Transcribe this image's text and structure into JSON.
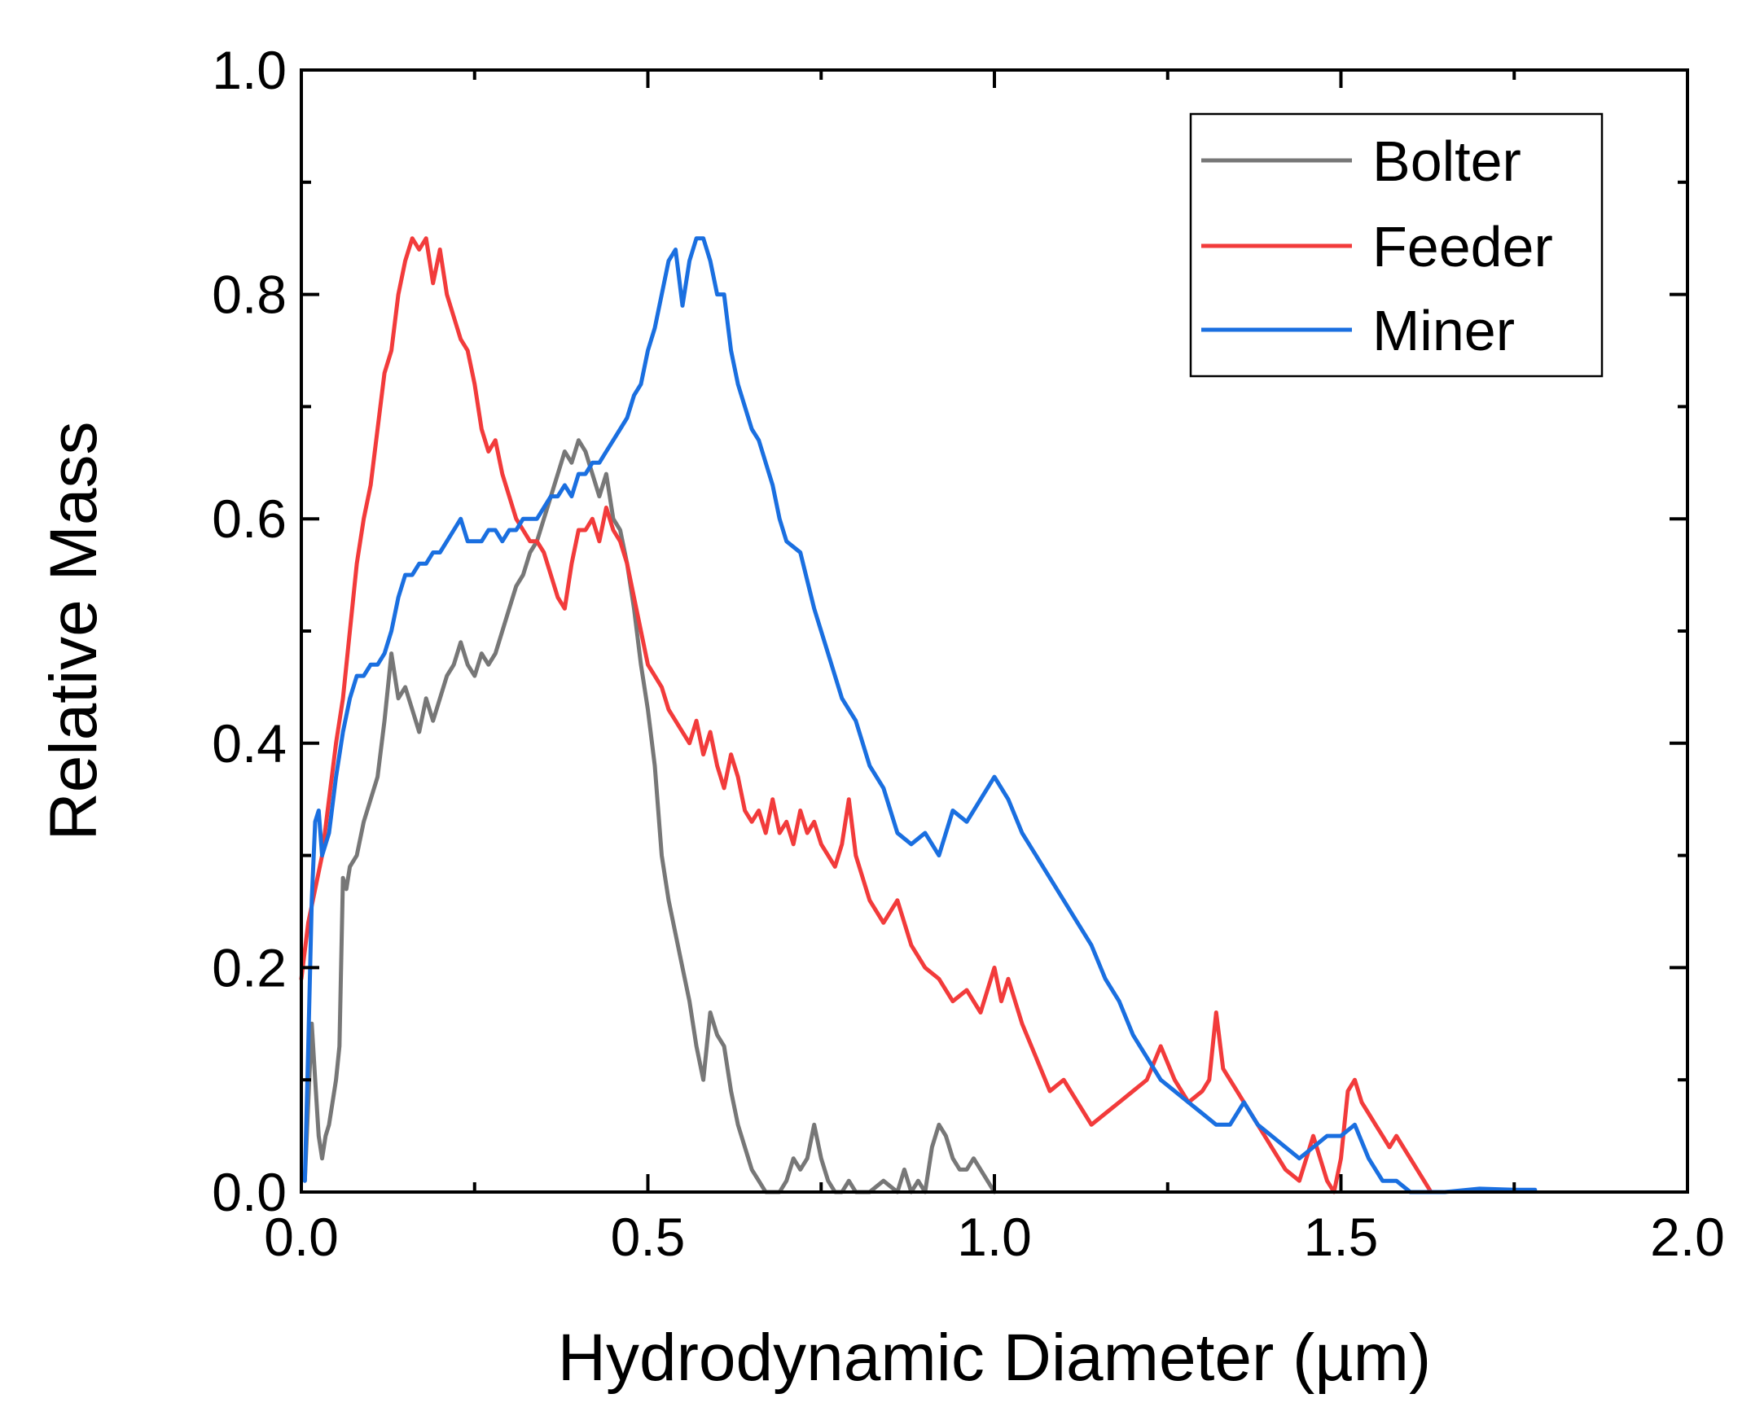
{
  "chart_data": {
    "type": "line",
    "title": "",
    "xlabel": "Hydrodynamic Diameter (µm)",
    "ylabel": "Relative Mass",
    "xlim": [
      0.0,
      2.0
    ],
    "ylim": [
      0.0,
      1.0
    ],
    "xticks": [
      "0.0",
      "0.5",
      "1.0",
      "1.5",
      "2.0"
    ],
    "yticks": [
      "0.0",
      "0.2",
      "0.4",
      "0.6",
      "0.8",
      "1.0"
    ],
    "grid": false,
    "legend_position": "top-right",
    "series": [
      {
        "name": "Bolter",
        "color": "#777777",
        "x": [
          0.005,
          0.01,
          0.015,
          0.02,
          0.025,
          0.03,
          0.035,
          0.04,
          0.05,
          0.055,
          0.06,
          0.065,
          0.07,
          0.08,
          0.09,
          0.1,
          0.11,
          0.12,
          0.13,
          0.14,
          0.15,
          0.16,
          0.17,
          0.18,
          0.19,
          0.2,
          0.21,
          0.22,
          0.23,
          0.24,
          0.25,
          0.26,
          0.27,
          0.28,
          0.29,
          0.3,
          0.31,
          0.32,
          0.33,
          0.34,
          0.35,
          0.36,
          0.37,
          0.38,
          0.39,
          0.4,
          0.41,
          0.42,
          0.43,
          0.44,
          0.45,
          0.46,
          0.47,
          0.48,
          0.49,
          0.5,
          0.51,
          0.52,
          0.53,
          0.54,
          0.55,
          0.56,
          0.57,
          0.58,
          0.59,
          0.6,
          0.61,
          0.62,
          0.63,
          0.64,
          0.65,
          0.66,
          0.67,
          0.68,
          0.69,
          0.7,
          0.71,
          0.72,
          0.73,
          0.74,
          0.75,
          0.76,
          0.77,
          0.78,
          0.79,
          0.8,
          0.82,
          0.84,
          0.86,
          0.87,
          0.88,
          0.89,
          0.9,
          0.91,
          0.92,
          0.93,
          0.94,
          0.95,
          0.96,
          0.97,
          0.98,
          0.99,
          1.0
        ],
        "values": [
          0.01,
          0.08,
          0.15,
          0.1,
          0.05,
          0.03,
          0.05,
          0.06,
          0.1,
          0.13,
          0.28,
          0.27,
          0.29,
          0.3,
          0.33,
          0.35,
          0.37,
          0.42,
          0.48,
          0.44,
          0.45,
          0.43,
          0.41,
          0.44,
          0.42,
          0.44,
          0.46,
          0.47,
          0.49,
          0.47,
          0.46,
          0.48,
          0.47,
          0.48,
          0.5,
          0.52,
          0.54,
          0.55,
          0.57,
          0.58,
          0.6,
          0.62,
          0.64,
          0.66,
          0.65,
          0.67,
          0.66,
          0.64,
          0.62,
          0.64,
          0.6,
          0.59,
          0.56,
          0.52,
          0.47,
          0.43,
          0.38,
          0.3,
          0.26,
          0.23,
          0.2,
          0.17,
          0.13,
          0.1,
          0.16,
          0.14,
          0.13,
          0.09,
          0.06,
          0.04,
          0.02,
          0.01,
          0.0,
          0.0,
          0.0,
          0.01,
          0.03,
          0.02,
          0.03,
          0.06,
          0.03,
          0.01,
          0.0,
          0.0,
          0.01,
          0.0,
          0.0,
          0.01,
          0.0,
          0.02,
          0.0,
          0.01,
          0.0,
          0.04,
          0.06,
          0.05,
          0.03,
          0.02,
          0.02,
          0.03,
          0.02,
          0.01,
          0.0
        ]
      },
      {
        "name": "Feeder",
        "color": "#F23B3B",
        "x": [
          0.0,
          0.01,
          0.02,
          0.03,
          0.04,
          0.05,
          0.06,
          0.07,
          0.08,
          0.09,
          0.1,
          0.11,
          0.12,
          0.13,
          0.14,
          0.15,
          0.16,
          0.17,
          0.18,
          0.19,
          0.2,
          0.21,
          0.22,
          0.23,
          0.24,
          0.25,
          0.26,
          0.27,
          0.28,
          0.29,
          0.3,
          0.31,
          0.32,
          0.33,
          0.34,
          0.35,
          0.36,
          0.37,
          0.38,
          0.39,
          0.4,
          0.41,
          0.42,
          0.43,
          0.44,
          0.45,
          0.46,
          0.47,
          0.48,
          0.49,
          0.5,
          0.51,
          0.52,
          0.53,
          0.54,
          0.55,
          0.56,
          0.57,
          0.58,
          0.59,
          0.6,
          0.61,
          0.62,
          0.63,
          0.64,
          0.65,
          0.66,
          0.67,
          0.68,
          0.69,
          0.7,
          0.71,
          0.72,
          0.73,
          0.74,
          0.75,
          0.76,
          0.77,
          0.78,
          0.79,
          0.8,
          0.82,
          0.84,
          0.86,
          0.88,
          0.9,
          0.92,
          0.94,
          0.96,
          0.98,
          1.0,
          1.01,
          1.02,
          1.04,
          1.06,
          1.08,
          1.1,
          1.12,
          1.14,
          1.16,
          1.18,
          1.2,
          1.22,
          1.24,
          1.26,
          1.28,
          1.3,
          1.31,
          1.32,
          1.33,
          1.34,
          1.36,
          1.38,
          1.4,
          1.42,
          1.44,
          1.45,
          1.46,
          1.47,
          1.48,
          1.49,
          1.5,
          1.51,
          1.52,
          1.53,
          1.54,
          1.55,
          1.56,
          1.57,
          1.58,
          1.59,
          1.6,
          1.61,
          1.62,
          1.63
        ],
        "values": [
          0.19,
          0.24,
          0.27,
          0.3,
          0.35,
          0.4,
          0.44,
          0.5,
          0.56,
          0.6,
          0.63,
          0.68,
          0.73,
          0.75,
          0.8,
          0.83,
          0.85,
          0.84,
          0.85,
          0.81,
          0.84,
          0.8,
          0.78,
          0.76,
          0.75,
          0.72,
          0.68,
          0.66,
          0.67,
          0.64,
          0.62,
          0.6,
          0.59,
          0.58,
          0.58,
          0.57,
          0.55,
          0.53,
          0.52,
          0.56,
          0.59,
          0.59,
          0.6,
          0.58,
          0.61,
          0.59,
          0.58,
          0.56,
          0.53,
          0.5,
          0.47,
          0.46,
          0.45,
          0.43,
          0.42,
          0.41,
          0.4,
          0.42,
          0.39,
          0.41,
          0.38,
          0.36,
          0.39,
          0.37,
          0.34,
          0.33,
          0.34,
          0.32,
          0.35,
          0.32,
          0.33,
          0.31,
          0.34,
          0.32,
          0.33,
          0.31,
          0.3,
          0.29,
          0.31,
          0.35,
          0.3,
          0.26,
          0.24,
          0.26,
          0.22,
          0.2,
          0.19,
          0.17,
          0.18,
          0.16,
          0.2,
          0.17,
          0.19,
          0.15,
          0.12,
          0.09,
          0.1,
          0.08,
          0.06,
          0.07,
          0.08,
          0.09,
          0.1,
          0.13,
          0.1,
          0.08,
          0.09,
          0.1,
          0.16,
          0.11,
          0.1,
          0.08,
          0.06,
          0.04,
          0.02,
          0.01,
          0.03,
          0.05,
          0.03,
          0.01,
          0.0,
          0.03,
          0.09,
          0.1,
          0.08,
          0.07,
          0.06,
          0.05,
          0.04,
          0.05,
          0.04,
          0.03,
          0.02,
          0.01,
          0.0
        ]
      },
      {
        "name": "Miner",
        "color": "#1A6FE0",
        "x": [
          0.005,
          0.01,
          0.015,
          0.02,
          0.025,
          0.03,
          0.04,
          0.05,
          0.06,
          0.07,
          0.08,
          0.09,
          0.1,
          0.11,
          0.12,
          0.13,
          0.14,
          0.15,
          0.16,
          0.17,
          0.18,
          0.19,
          0.2,
          0.21,
          0.22,
          0.23,
          0.24,
          0.25,
          0.26,
          0.27,
          0.28,
          0.29,
          0.3,
          0.31,
          0.32,
          0.33,
          0.34,
          0.35,
          0.36,
          0.37,
          0.38,
          0.39,
          0.4,
          0.41,
          0.42,
          0.43,
          0.44,
          0.45,
          0.46,
          0.47,
          0.48,
          0.49,
          0.5,
          0.51,
          0.52,
          0.53,
          0.54,
          0.55,
          0.56,
          0.57,
          0.58,
          0.59,
          0.6,
          0.61,
          0.62,
          0.63,
          0.64,
          0.65,
          0.66,
          0.67,
          0.68,
          0.69,
          0.7,
          0.72,
          0.74,
          0.76,
          0.78,
          0.8,
          0.82,
          0.84,
          0.86,
          0.88,
          0.9,
          0.92,
          0.94,
          0.96,
          0.98,
          1.0,
          1.02,
          1.04,
          1.06,
          1.08,
          1.1,
          1.12,
          1.14,
          1.16,
          1.18,
          1.2,
          1.22,
          1.24,
          1.26,
          1.28,
          1.3,
          1.32,
          1.34,
          1.36,
          1.38,
          1.4,
          1.42,
          1.44,
          1.46,
          1.48,
          1.5,
          1.52,
          1.54,
          1.56,
          1.58,
          1.6,
          1.62,
          1.65,
          1.7,
          1.75,
          1.78
        ],
        "values": [
          0.01,
          0.13,
          0.26,
          0.33,
          0.34,
          0.3,
          0.32,
          0.37,
          0.41,
          0.44,
          0.46,
          0.46,
          0.47,
          0.47,
          0.48,
          0.5,
          0.53,
          0.55,
          0.55,
          0.56,
          0.56,
          0.57,
          0.57,
          0.58,
          0.59,
          0.6,
          0.58,
          0.58,
          0.58,
          0.59,
          0.59,
          0.58,
          0.59,
          0.59,
          0.6,
          0.6,
          0.6,
          0.61,
          0.62,
          0.62,
          0.63,
          0.62,
          0.64,
          0.64,
          0.65,
          0.65,
          0.66,
          0.67,
          0.68,
          0.69,
          0.71,
          0.72,
          0.75,
          0.77,
          0.8,
          0.83,
          0.84,
          0.79,
          0.83,
          0.85,
          0.85,
          0.83,
          0.8,
          0.8,
          0.75,
          0.72,
          0.7,
          0.68,
          0.67,
          0.65,
          0.63,
          0.6,
          0.58,
          0.57,
          0.52,
          0.48,
          0.44,
          0.42,
          0.38,
          0.36,
          0.32,
          0.31,
          0.32,
          0.3,
          0.34,
          0.33,
          0.35,
          0.37,
          0.35,
          0.32,
          0.3,
          0.28,
          0.26,
          0.24,
          0.22,
          0.19,
          0.17,
          0.14,
          0.12,
          0.1,
          0.09,
          0.08,
          0.07,
          0.06,
          0.06,
          0.08,
          0.06,
          0.05,
          0.04,
          0.03,
          0.04,
          0.05,
          0.05,
          0.06,
          0.03,
          0.01,
          0.01,
          0.0,
          0.0,
          0.0,
          0.003,
          0.002,
          0.002
        ]
      }
    ]
  }
}
